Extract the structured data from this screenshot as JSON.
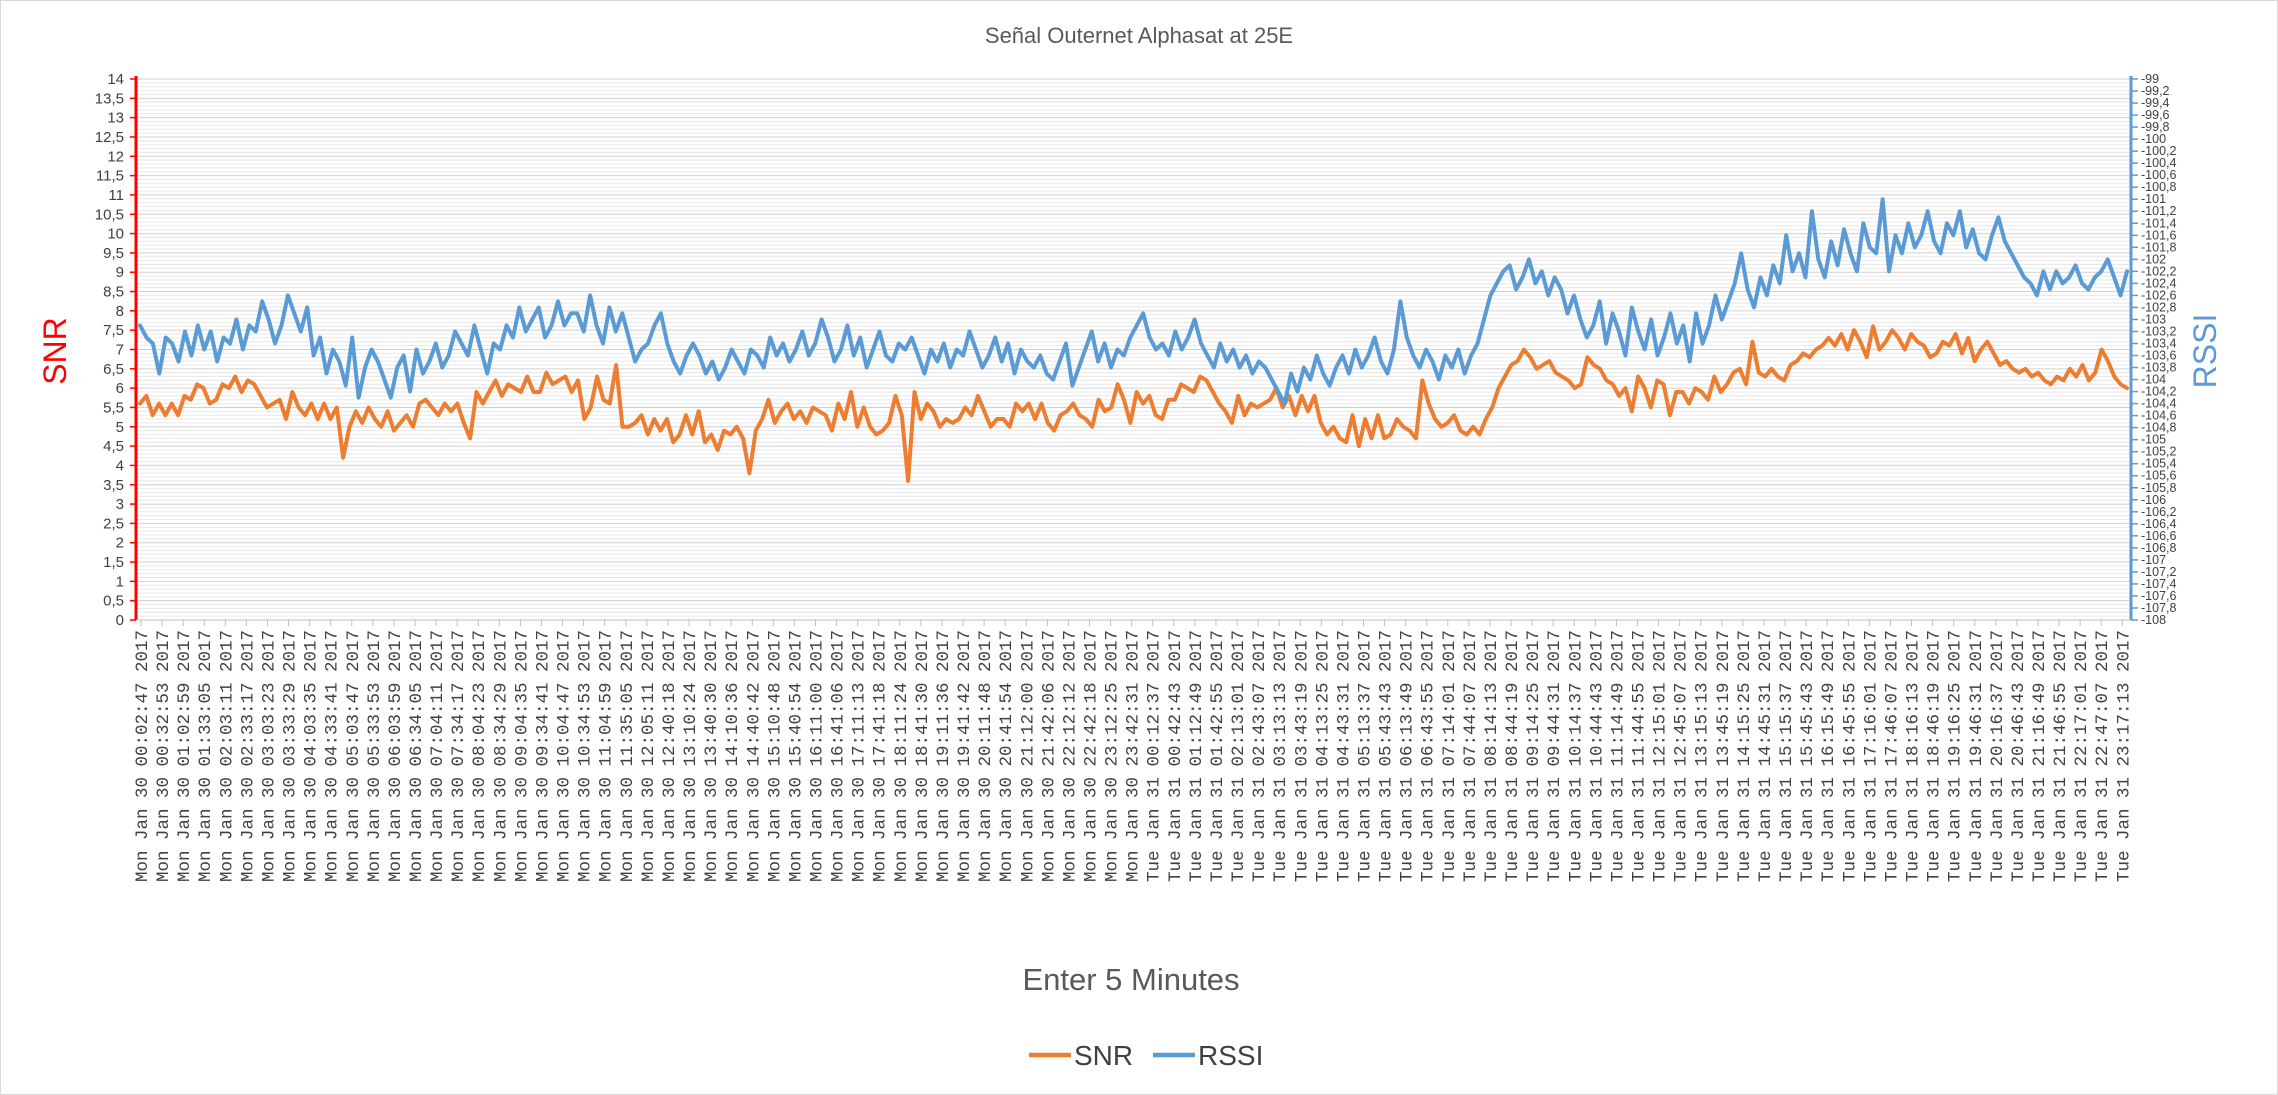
{
  "chart_data": {
    "type": "line",
    "title": "Señal Outernet Alphasat at 25E",
    "xlabel": "Enter 5 Minutes",
    "ylabel_left": "SNR",
    "ylabel_right": "RSSI",
    "ylim_left": [
      0,
      14
    ],
    "ylim_right": [
      -108,
      -99
    ],
    "y_ticks_left": [
      "0",
      "0,5",
      "1",
      "1,5",
      "2",
      "2,5",
      "3",
      "3,5",
      "4",
      "4,5",
      "5",
      "5,5",
      "6",
      "6,5",
      "7",
      "7,5",
      "8",
      "8,5",
      "9",
      "9,5",
      "10",
      "10,5",
      "11",
      "11,5",
      "12",
      "12,5",
      "13",
      "13,5",
      "14"
    ],
    "y_ticks_right": [
      "-108",
      "-107,8",
      "-107,6",
      "-107,4",
      "-107,2",
      "-107",
      "-106,8",
      "-106,6",
      "-106,4",
      "-106,2",
      "-106",
      "-105,8",
      "-105,6",
      "-105,4",
      "-105,2",
      "-105",
      "-104,8",
      "-104,6",
      "-104,4",
      "-104,2",
      "-104",
      "-103,8",
      "-103,6",
      "-103,4",
      "-103,2",
      "-103",
      "-102,8",
      "-102,6",
      "-102,4",
      "-102,2",
      "-102",
      "-101,8",
      "-101,6",
      "-101,4",
      "-101,2",
      "-101",
      "-100,8",
      "-100,6",
      "-100,4",
      "-100,2",
      "-100",
      "-99,8",
      "-99,6",
      "-99,4",
      "-99,2",
      "-99"
    ],
    "x_tick_labels": [
      "Mon Jan 30 00:02:47 2017",
      "Mon Jan 30 00:32:53 2017",
      "Mon Jan 30 01:02:59 2017",
      "Mon Jan 30 01:33:05 2017",
      "Mon Jan 30 02:03:11 2017",
      "Mon Jan 30 02:33:17 2017",
      "Mon Jan 30 03:03:23 2017",
      "Mon Jan 30 03:33:29 2017",
      "Mon Jan 30 04:03:35 2017",
      "Mon Jan 30 04:33:41 2017",
      "Mon Jan 30 05:03:47 2017",
      "Mon Jan 30 05:33:53 2017",
      "Mon Jan 30 06:03:59 2017",
      "Mon Jan 30 06:34:05 2017",
      "Mon Jan 30 07:04:11 2017",
      "Mon Jan 30 07:34:17 2017",
      "Mon Jan 30 08:04:23 2017",
      "Mon Jan 30 08:34:29 2017",
      "Mon Jan 30 09:04:35 2017",
      "Mon Jan 30 09:34:41 2017",
      "Mon Jan 30 10:04:47 2017",
      "Mon Jan 30 10:34:53 2017",
      "Mon Jan 30 11:04:59 2017",
      "Mon Jan 30 11:35:05 2017",
      "Mon Jan 30 12:05:11 2017",
      "Mon Jan 30 12:40:18 2017",
      "Mon Jan 30 13:10:24 2017",
      "Mon Jan 30 13:40:30 2017",
      "Mon Jan 30 14:10:36 2017",
      "Mon Jan 30 14:40:42 2017",
      "Mon Jan 30 15:10:48 2017",
      "Mon Jan 30 15:40:54 2017",
      "Mon Jan 30 16:11:00 2017",
      "Mon Jan 30 16:41:06 2017",
      "Mon Jan 30 17:11:13 2017",
      "Mon Jan 30 17:41:18 2017",
      "Mon Jan 30 18:11:24 2017",
      "Mon Jan 30 18:41:30 2017",
      "Mon Jan 30 19:11:36 2017",
      "Mon Jan 30 19:41:42 2017",
      "Mon Jan 30 20:11:48 2017",
      "Mon Jan 30 20:41:54 2017",
      "Mon Jan 30 21:12:00 2017",
      "Mon Jan 30 21:42:06 2017",
      "Mon Jan 30 22:12:12 2017",
      "Mon Jan 30 22:42:18 2017",
      "Mon Jan 30 23:12:25 2017",
      "Mon Jan 30 23:42:31 2017",
      "Tue Jan 31 00:12:37 2017",
      "Tue Jan 31 00:42:43 2017",
      "Tue Jan 31 01:12:49 2017",
      "Tue Jan 31 01:42:55 2017",
      "Tue Jan 31 02:13:01 2017",
      "Tue Jan 31 02:43:07 2017",
      "Tue Jan 31 03:13:13 2017",
      "Tue Jan 31 03:43:19 2017",
      "Tue Jan 31 04:13:25 2017",
      "Tue Jan 31 04:43:31 2017",
      "Tue Jan 31 05:13:37 2017",
      "Tue Jan 31 05:43:43 2017",
      "Tue Jan 31 06:13:49 2017",
      "Tue Jan 31 06:43:55 2017",
      "Tue Jan 31 07:14:01 2017",
      "Tue Jan 31 07:44:07 2017",
      "Tue Jan 31 08:14:13 2017",
      "Tue Jan 31 08:44:19 2017",
      "Tue Jan 31 09:14:25 2017",
      "Tue Jan 31 09:44:31 2017",
      "Tue Jan 31 10:14:37 2017",
      "Tue Jan 31 10:44:43 2017",
      "Tue Jan 31 11:14:49 2017",
      "Tue Jan 31 11:44:55 2017",
      "Tue Jan 31 12:15:01 2017",
      "Tue Jan 31 12:45:07 2017",
      "Tue Jan 31 13:15:13 2017",
      "Tue Jan 31 13:45:19 2017",
      "Tue Jan 31 14:15:25 2017",
      "Tue Jan 31 14:45:31 2017",
      "Tue Jan 31 15:15:37 2017",
      "Tue Jan 31 15:45:43 2017",
      "Tue Jan 31 16:15:49 2017",
      "Tue Jan 31 16:45:55 2017",
      "Tue Jan 31 17:16:01 2017",
      "Tue Jan 31 17:46:07 2017",
      "Tue Jan 31 18:16:13 2017",
      "Tue Jan 31 18:46:19 2017",
      "Tue Jan 31 19:16:25 2017",
      "Tue Jan 31 19:46:31 2017",
      "Tue Jan 31 20:16:37 2017",
      "Tue Jan 31 20:46:43 2017",
      "Tue Jan 31 21:16:49 2017",
      "Tue Jan 31 21:46:55 2017",
      "Tue Jan 31 22:17:01 2017",
      "Tue Jan 31 22:47:07 2017",
      "Tue Jan 31 23:17:13 2017"
    ],
    "series": [
      {
        "name": "SNR",
        "axis": "left",
        "color": "#ED7D31",
        "values": [
          5.6,
          5.8,
          5.3,
          5.6,
          5.3,
          5.6,
          5.3,
          5.8,
          5.7,
          6.1,
          6.0,
          5.6,
          5.7,
          6.1,
          6.0,
          6.3,
          5.9,
          6.2,
          6.1,
          5.8,
          5.5,
          5.6,
          5.7,
          5.2,
          5.9,
          5.5,
          5.3,
          5.6,
          5.2,
          5.6,
          5.2,
          5.5,
          4.2,
          5.0,
          5.4,
          5.1,
          5.5,
          5.2,
          5.0,
          5.4,
          4.9,
          5.1,
          5.3,
          5.0,
          5.6,
          5.7,
          5.5,
          5.3,
          5.6,
          5.4,
          5.6,
          5.1,
          4.7,
          5.9,
          5.6,
          5.9,
          6.2,
          5.8,
          6.1,
          6.0,
          5.9,
          6.3,
          5.9,
          5.9,
          6.4,
          6.1,
          6.2,
          6.3,
          5.9,
          6.2,
          5.2,
          5.5,
          6.3,
          5.7,
          5.6,
          6.6,
          5.0,
          5.0,
          5.1,
          5.3,
          4.8,
          5.2,
          4.9,
          5.2,
          4.6,
          4.8,
          5.3,
          4.8,
          5.4,
          4.6,
          4.8,
          4.4,
          4.9,
          4.8,
          5.0,
          4.7,
          3.8,
          4.9,
          5.2,
          5.7,
          5.1,
          5.4,
          5.6,
          5.2,
          5.4,
          5.1,
          5.5,
          5.4,
          5.3,
          4.9,
          5.6,
          5.2,
          5.9,
          5.0,
          5.5,
          5.0,
          4.8,
          4.9,
          5.1,
          5.8,
          5.3,
          3.6,
          5.9,
          5.2,
          5.6,
          5.4,
          5.0,
          5.2,
          5.1,
          5.2,
          5.5,
          5.3,
          5.8,
          5.4,
          5.0,
          5.2,
          5.2,
          5.0,
          5.6,
          5.4,
          5.6,
          5.2,
          5.6,
          5.1,
          4.9,
          5.3,
          5.4,
          5.6,
          5.3,
          5.2,
          5.0,
          5.7,
          5.4,
          5.5,
          6.1,
          5.7,
          5.1,
          5.9,
          5.6,
          5.8,
          5.3,
          5.2,
          5.7,
          5.7,
          6.1,
          6.0,
          5.9,
          6.3,
          6.2,
          5.9,
          5.6,
          5.4,
          5.1,
          5.8,
          5.3,
          5.6,
          5.5,
          5.6,
          5.7,
          6.0,
          5.5,
          5.8,
          5.3,
          5.8,
          5.4,
          5.8,
          5.1,
          4.8,
          5.0,
          4.7,
          4.6,
          5.3,
          4.5,
          5.2,
          4.7,
          5.3,
          4.7,
          4.8,
          5.2,
          5.0,
          4.9,
          4.7,
          6.2,
          5.6,
          5.2,
          5.0,
          5.1,
          5.3,
          4.9,
          4.8,
          5.0,
          4.8,
          5.2,
          5.5,
          6.0,
          6.3,
          6.6,
          6.7,
          7.0,
          6.8,
          6.5,
          6.6,
          6.7,
          6.4,
          6.3,
          6.2,
          6.0,
          6.1,
          6.8,
          6.6,
          6.5,
          6.2,
          6.1,
          5.8,
          6.0,
          5.4,
          6.3,
          6.0,
          5.5,
          6.2,
          6.1,
          5.3,
          5.9,
          5.9,
          5.6,
          6.0,
          5.9,
          5.7,
          6.3,
          5.9,
          6.1,
          6.4,
          6.5,
          6.1,
          7.2,
          6.4,
          6.3,
          6.5,
          6.3,
          6.2,
          6.6,
          6.7,
          6.9,
          6.8,
          7.0,
          7.1,
          7.3,
          7.1,
          7.4,
          7.0,
          7.5,
          7.2,
          6.8,
          7.6,
          7.0,
          7.2,
          7.5,
          7.3,
          7.0,
          7.4,
          7.2,
          7.1,
          6.8,
          6.9,
          7.2,
          7.1,
          7.4,
          6.9,
          7.3,
          6.7,
          7.0,
          7.2,
          6.9,
          6.6,
          6.7,
          6.5,
          6.4,
          6.5,
          6.3,
          6.4,
          6.2,
          6.1,
          6.3,
          6.2,
          6.5,
          6.3,
          6.6,
          6.2,
          6.4,
          7.0,
          6.7,
          6.3,
          6.1,
          6.0
        ]
      },
      {
        "name": "RSSI",
        "axis": "right",
        "color": "#5B9BD5",
        "values": [
          -103.1,
          -103.3,
          -103.4,
          -103.9,
          -103.3,
          -103.4,
          -103.7,
          -103.2,
          -103.6,
          -103.1,
          -103.5,
          -103.2,
          -103.7,
          -103.3,
          -103.4,
          -103.0,
          -103.5,
          -103.1,
          -103.2,
          -102.7,
          -103.0,
          -103.4,
          -103.1,
          -102.6,
          -102.9,
          -103.2,
          -102.8,
          -103.6,
          -103.3,
          -103.9,
          -103.5,
          -103.7,
          -104.1,
          -103.3,
          -104.3,
          -103.8,
          -103.5,
          -103.7,
          -104.0,
          -104.3,
          -103.8,
          -103.6,
          -104.2,
          -103.5,
          -103.9,
          -103.7,
          -103.4,
          -103.8,
          -103.6,
          -103.2,
          -103.4,
          -103.6,
          -103.1,
          -103.5,
          -103.9,
          -103.4,
          -103.5,
          -103.1,
          -103.3,
          -102.8,
          -103.2,
          -103.0,
          -102.8,
          -103.3,
          -103.1,
          -102.7,
          -103.1,
          -102.9,
          -102.9,
          -103.2,
          -102.6,
          -103.1,
          -103.4,
          -102.8,
          -103.2,
          -102.9,
          -103.3,
          -103.7,
          -103.5,
          -103.4,
          -103.1,
          -102.9,
          -103.4,
          -103.7,
          -103.9,
          -103.6,
          -103.4,
          -103.6,
          -103.9,
          -103.7,
          -104.0,
          -103.8,
          -103.5,
          -103.7,
          -103.9,
          -103.5,
          -103.6,
          -103.8,
          -103.3,
          -103.6,
          -103.4,
          -103.7,
          -103.5,
          -103.2,
          -103.6,
          -103.4,
          -103.0,
          -103.3,
          -103.7,
          -103.5,
          -103.1,
          -103.6,
          -103.3,
          -103.8,
          -103.5,
          -103.2,
          -103.6,
          -103.7,
          -103.4,
          -103.5,
          -103.3,
          -103.6,
          -103.9,
          -103.5,
          -103.7,
          -103.4,
          -103.8,
          -103.5,
          -103.6,
          -103.2,
          -103.5,
          -103.8,
          -103.6,
          -103.3,
          -103.7,
          -103.4,
          -103.9,
          -103.5,
          -103.7,
          -103.8,
          -103.6,
          -103.9,
          -104.0,
          -103.7,
          -103.4,
          -104.1,
          -103.8,
          -103.5,
          -103.2,
          -103.7,
          -103.4,
          -103.8,
          -103.5,
          -103.6,
          -103.3,
          -103.1,
          -102.9,
          -103.3,
          -103.5,
          -103.4,
          -103.6,
          -103.2,
          -103.5,
          -103.3,
          -103.0,
          -103.4,
          -103.6,
          -103.8,
          -103.4,
          -103.7,
          -103.5,
          -103.8,
          -103.6,
          -103.9,
          -103.7,
          -103.8,
          -104.0,
          -104.2,
          -104.4,
          -103.9,
          -104.2,
          -103.8,
          -104.0,
          -103.6,
          -103.9,
          -104.1,
          -103.8,
          -103.6,
          -103.9,
          -103.5,
          -103.8,
          -103.6,
          -103.3,
          -103.7,
          -103.9,
          -103.5,
          -102.7,
          -103.3,
          -103.6,
          -103.8,
          -103.5,
          -103.7,
          -104.0,
          -103.6,
          -103.8,
          -103.5,
          -103.9,
          -103.6,
          -103.4,
          -103.0,
          -102.6,
          -102.4,
          -102.2,
          -102.1,
          -102.5,
          -102.3,
          -102.0,
          -102.4,
          -102.2,
          -102.6,
          -102.3,
          -102.5,
          -102.9,
          -102.6,
          -103.0,
          -103.3,
          -103.1,
          -102.7,
          -103.4,
          -102.9,
          -103.2,
          -103.6,
          -102.8,
          -103.2,
          -103.5,
          -103.0,
          -103.6,
          -103.3,
          -102.9,
          -103.4,
          -103.1,
          -103.7,
          -102.9,
          -103.4,
          -103.1,
          -102.6,
          -103.0,
          -102.7,
          -102.4,
          -101.9,
          -102.5,
          -102.8,
          -102.3,
          -102.6,
          -102.1,
          -102.4,
          -101.6,
          -102.2,
          -101.9,
          -102.3,
          -101.2,
          -102.0,
          -102.3,
          -101.7,
          -102.1,
          -101.5,
          -101.9,
          -102.2,
          -101.4,
          -101.8,
          -101.9,
          -101.0,
          -102.2,
          -101.6,
          -101.9,
          -101.4,
          -101.8,
          -101.6,
          -101.2,
          -101.7,
          -101.9,
          -101.4,
          -101.6,
          -101.2,
          -101.8,
          -101.5,
          -101.9,
          -102.0,
          -101.6,
          -101.3,
          -101.7,
          -101.9,
          -102.1,
          -102.3,
          -102.4,
          -102.6,
          -102.2,
          -102.5,
          -102.2,
          -102.4,
          -102.3,
          -102.1,
          -102.4,
          -102.5,
          -102.3,
          -102.2,
          -102.0,
          -102.3,
          -102.6,
          -102.2
        ]
      }
    ],
    "legend_position": "bottom",
    "grid": true
  }
}
